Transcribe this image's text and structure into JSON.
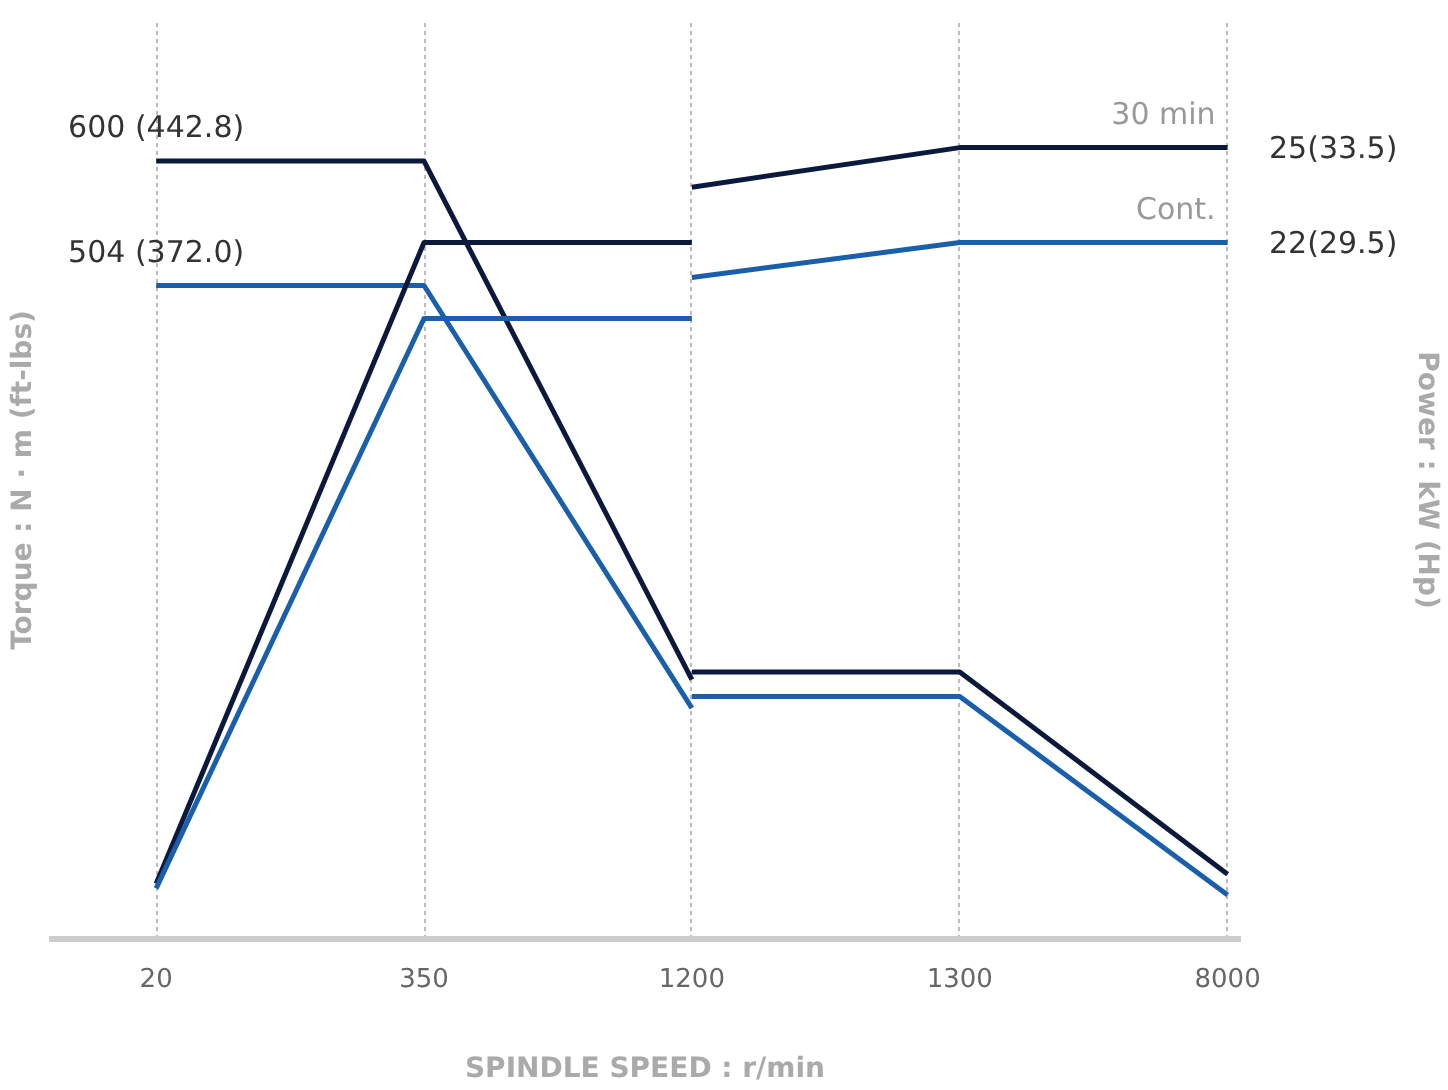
{
  "chart_data": {
    "type": "line",
    "xlabel": "SPINDLE SPEED : r/min",
    "ylabel": "Torque : N · m (ft-lbs)",
    "y2label": "Power : kW (Hp)",
    "categories": [
      "20",
      "350",
      "1200",
      "1300",
      "8000"
    ],
    "grid": "x",
    "marker": "none",
    "line_style": "solid",
    "series": [
      {
        "color": "#0b1a3c",
        "axis": "y",
        "values": [
          600,
          600,
          200,
          null,
          null
        ],
        "value_labels": [
          "600 (442.8)",
          null,
          null,
          null,
          null
        ]
      },
      {
        "color": "#0b1a3c",
        "axis": "y",
        "values": [
          null,
          null,
          206,
          206,
          50
        ]
      },
      {
        "color": "#1a5fab",
        "axis": "y",
        "values": [
          504,
          504,
          178,
          null,
          null
        ],
        "value_labels": [
          "504 (372.0)",
          null,
          null,
          null,
          null
        ]
      },
      {
        "color": "#1a5fab",
        "axis": "y",
        "values": [
          null,
          null,
          187,
          187,
          34
        ]
      },
      {
        "color": "#0b1a3c",
        "axis": "y2",
        "values": [
          1.75,
          22,
          22,
          null,
          null
        ]
      },
      {
        "name": "30 min",
        "color": "#0b1a3c",
        "axis": "y2",
        "values": [
          null,
          null,
          23.75,
          25,
          25
        ],
        "value_labels": [
          null,
          null,
          null,
          null,
          "25(33.5)"
        ]
      },
      {
        "color": "#1a5fab",
        "axis": "y2",
        "values": [
          1.6,
          19.6,
          19.6,
          null,
          null
        ]
      },
      {
        "name": "Cont.",
        "color": "#1a5fab",
        "axis": "y2",
        "values": [
          null,
          null,
          20.9,
          22,
          22
        ],
        "value_labels": [
          null,
          null,
          null,
          null,
          "22(29.5)"
        ]
      }
    ]
  }
}
